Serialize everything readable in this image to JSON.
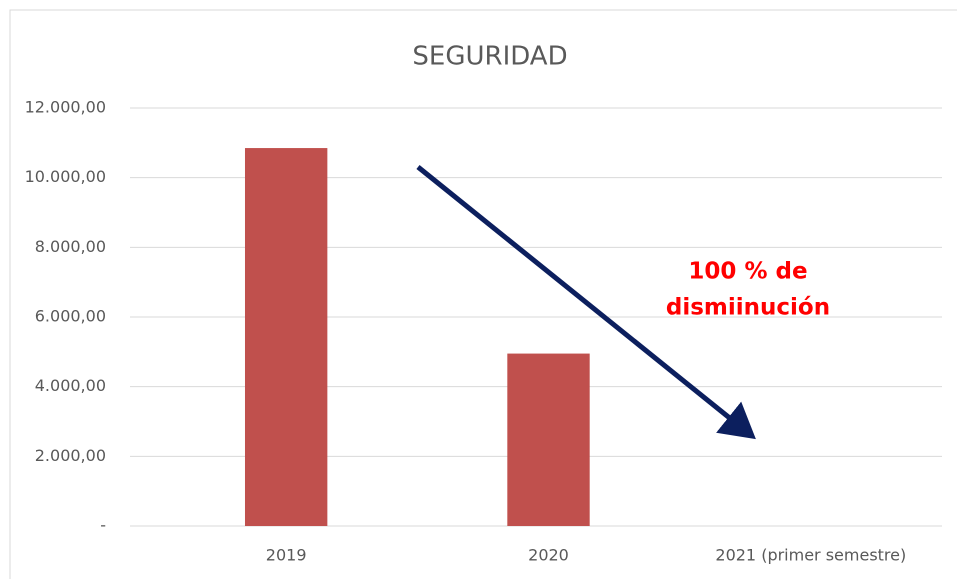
{
  "chart_data": {
    "type": "bar",
    "title": "SEGURIDAD",
    "categories": [
      "2019",
      "2020",
      "2021 (primer semestre)"
    ],
    "values": [
      10850,
      4950,
      0
    ],
    "color": "#c0504d",
    "ylim": [
      0,
      12000
    ],
    "yticks": [
      {
        "value": 0,
        "label": "-"
      },
      {
        "value": 2000,
        "label": "2.000,00"
      },
      {
        "value": 4000,
        "label": "4.000,00"
      },
      {
        "value": 6000,
        "label": "6.000,00"
      },
      {
        "value": 8000,
        "label": "8.000,00"
      },
      {
        "value": 10000,
        "label": "10.000,00"
      },
      {
        "value": 12000,
        "label": "12.000,00"
      }
    ],
    "grid": true,
    "annotation": [
      "100 % de",
      "dismiinución"
    ]
  }
}
